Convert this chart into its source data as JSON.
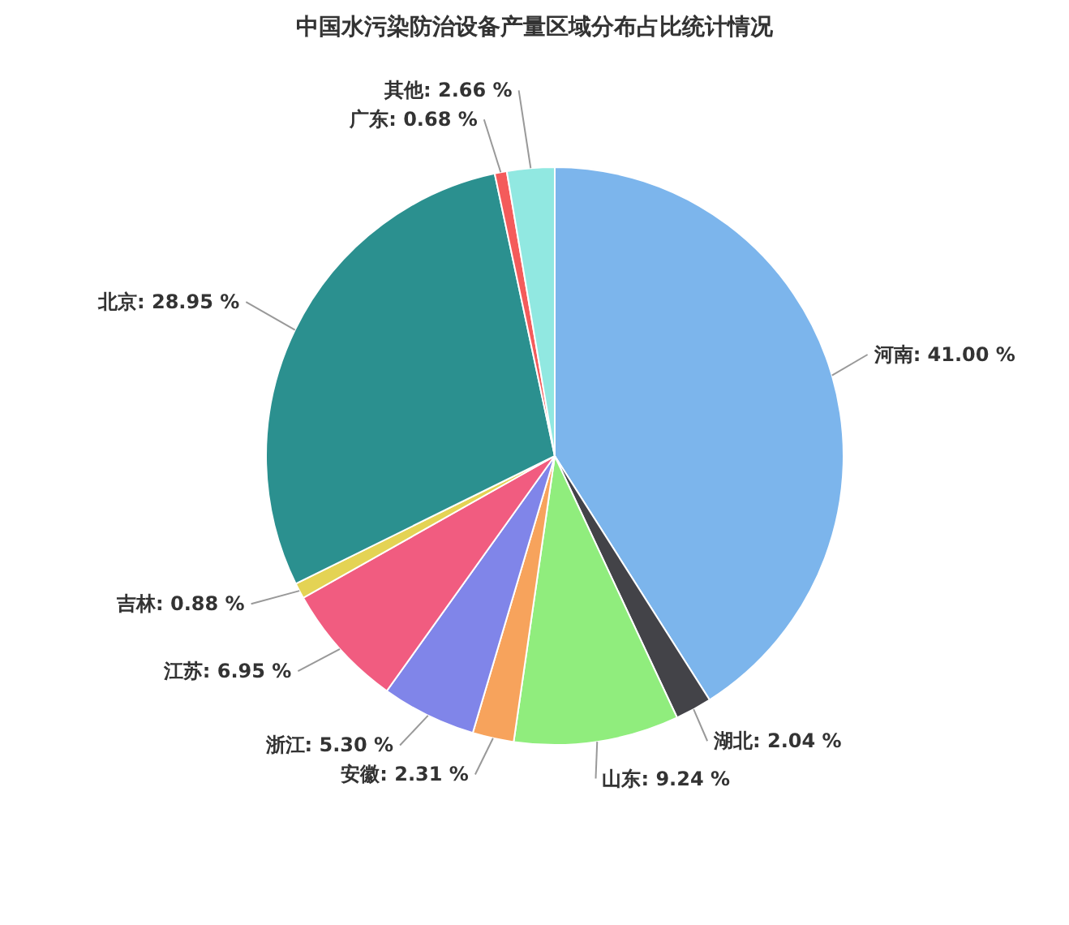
{
  "chart_data": {
    "type": "pie",
    "title": "中国水污染防治设备产量区域分布占比统计情况",
    "categories": [
      "河南",
      "湖北",
      "山东",
      "安徽",
      "浙江",
      "江苏",
      "吉林",
      "北京",
      "广东",
      "其他"
    ],
    "values": [
      41.0,
      2.04,
      9.24,
      2.31,
      5.3,
      6.95,
      0.88,
      28.95,
      0.68,
      2.66
    ],
    "value_labels": [
      "41.00 %",
      "2.04 %",
      "9.24 %",
      "2.31 %",
      "5.30 %",
      "6.95 %",
      "0.88 %",
      "28.95 %",
      "0.68 %",
      "2.66 %"
    ],
    "colors": [
      "#7cb5ec",
      "#434348",
      "#90ed7d",
      "#f7a35c",
      "#8085e9",
      "#f15c80",
      "#e4d354",
      "#2b908f",
      "#f45b5b",
      "#91e8e1"
    ]
  }
}
